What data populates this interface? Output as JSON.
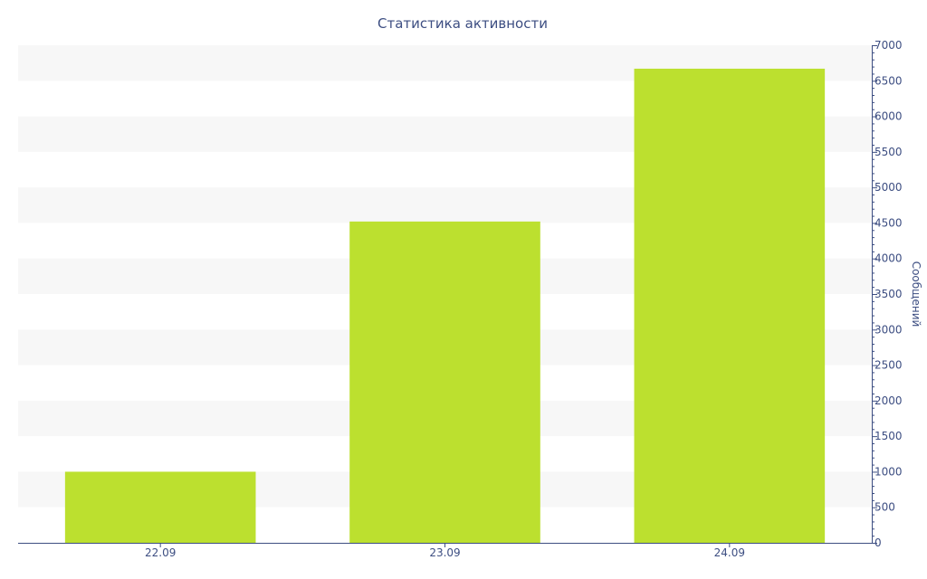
{
  "colors": {
    "bar": "#bce02f",
    "band": "#f7f7f7",
    "axis": "#3d4e82",
    "text": "#3d4e82",
    "background": "#ffffff"
  },
  "chart_data": {
    "type": "bar",
    "title": "Статистика активности",
    "xlabel": "",
    "ylabel": "Сообщений",
    "categories": [
      "22.09",
      "23.09",
      "24.09"
    ],
    "values": [
      1000,
      4520,
      6670
    ],
    "ylim": [
      0,
      7000
    ],
    "yticks": [
      0,
      500,
      1000,
      1500,
      2000,
      2500,
      3000,
      3500,
      4000,
      4500,
      5000,
      5500,
      6000,
      6500,
      7000
    ],
    "y_axis_side": "right",
    "grid": "alternating horizontal bands",
    "legend": "none"
  }
}
